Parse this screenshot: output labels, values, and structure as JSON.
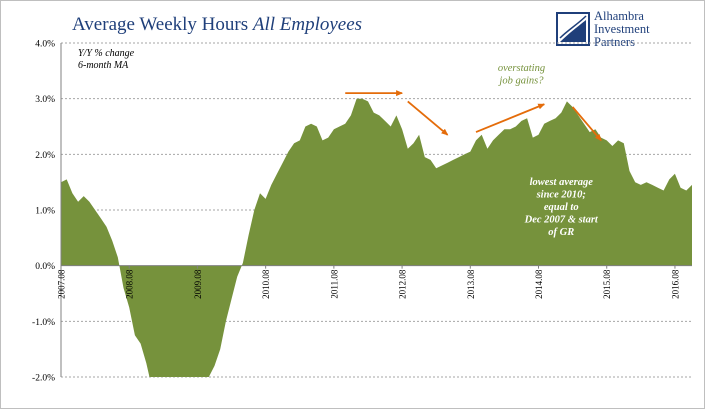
{
  "header": {
    "title_main": "Average Weekly Hours ",
    "title_italic": "All Employees"
  },
  "logo": {
    "icon": "alhambra-logo-icon",
    "lines": [
      "Alhambra",
      "Investment",
      "Partners"
    ]
  },
  "colors": {
    "area_fill": "#76923c",
    "arrow": "#e46c0a",
    "title": "#1f3f7a",
    "annotation_text": "#76923c",
    "note_text": "#ffffff"
  },
  "chart_data": {
    "type": "area",
    "title": "Average Weekly Hours All Employees",
    "subtitle_lines": [
      "Y/Y % change",
      "6-month MA"
    ],
    "xlabel": "",
    "ylabel": "",
    "y_ticks": [
      "4.0%",
      "3.0%",
      "2.0%",
      "1.0%",
      "0.0%",
      "-1.0%",
      "-2.0%"
    ],
    "ylim": [
      -2.0,
      4.0
    ],
    "x_ticks": [
      "2007.08",
      "2008.08",
      "2009.08",
      "2010.08",
      "2011.08",
      "2012.08",
      "2013.08",
      "2014.08",
      "2015.08",
      "2016.08"
    ],
    "xlim": [
      "2007.08",
      "2016.11"
    ],
    "grid": true,
    "series": [
      {
        "x": [
          "2007.08",
          "2007.09",
          "2007.10",
          "2007.11",
          "2007.12",
          "2008.01",
          "2008.02",
          "2008.03",
          "2008.04",
          "2008.05",
          "2008.06",
          "2008.07",
          "2008.08",
          "2008.09",
          "2008.10",
          "2008.11",
          "2008.12",
          "2009.01",
          "2009.02",
          "2009.03",
          "2009.04",
          "2009.05",
          "2009.06",
          "2009.07",
          "2009.08",
          "2009.09",
          "2009.10",
          "2009.11",
          "2009.12",
          "2010.01",
          "2010.02",
          "2010.03",
          "2010.04",
          "2010.05",
          "2010.06",
          "2010.07",
          "2010.08",
          "2010.09",
          "2010.10",
          "2010.11",
          "2010.12",
          "2011.01",
          "2011.02",
          "2011.03",
          "2011.04",
          "2011.05",
          "2011.06",
          "2011.07",
          "2011.08",
          "2011.09",
          "2011.10",
          "2011.11",
          "2011.12",
          "2012.01",
          "2012.02",
          "2012.03",
          "2012.04",
          "2012.05",
          "2012.06",
          "2012.07",
          "2012.08",
          "2012.09",
          "2012.10",
          "2012.11",
          "2012.12",
          "2013.01",
          "2013.02",
          "2013.03",
          "2013.04",
          "2013.05",
          "2013.06",
          "2013.07",
          "2013.08",
          "2013.09",
          "2013.10",
          "2013.11",
          "2013.12",
          "2014.01",
          "2014.02",
          "2014.03",
          "2014.04",
          "2014.05",
          "2014.06",
          "2014.07",
          "2014.08",
          "2014.09",
          "2014.10",
          "2014.11",
          "2014.12",
          "2015.01",
          "2015.02",
          "2015.03",
          "2015.04",
          "2015.05",
          "2015.06",
          "2015.07",
          "2015.08",
          "2015.09",
          "2015.10",
          "2015.11",
          "2015.12",
          "2016.01",
          "2016.02",
          "2016.03",
          "2016.04",
          "2016.05",
          "2016.06",
          "2016.07",
          "2016.08",
          "2016.09",
          "2016.10",
          "2016.11"
        ],
        "values": [
          1.5,
          1.55,
          1.3,
          1.15,
          1.25,
          1.15,
          1.0,
          0.85,
          0.7,
          0.45,
          0.15,
          -0.4,
          -0.75,
          -1.25,
          -1.4,
          -1.75,
          -2.2,
          -2.4,
          -2.5,
          -2.55,
          -2.55,
          -2.5,
          -2.45,
          -2.35,
          -2.2,
          -2.1,
          -2.0,
          -1.8,
          -1.5,
          -1.0,
          -0.6,
          -0.2,
          0.05,
          0.55,
          1.0,
          1.3,
          1.2,
          1.45,
          1.65,
          1.85,
          2.05,
          2.2,
          2.25,
          2.5,
          2.55,
          2.5,
          2.25,
          2.3,
          2.45,
          2.5,
          2.55,
          2.7,
          3.0,
          3.0,
          2.95,
          2.75,
          2.7,
          2.6,
          2.5,
          2.7,
          2.45,
          2.1,
          2.2,
          2.35,
          1.95,
          1.9,
          1.75,
          1.8,
          1.85,
          1.9,
          1.95,
          2.0,
          2.05,
          2.25,
          2.35,
          2.1,
          2.25,
          2.35,
          2.45,
          2.45,
          2.5,
          2.6,
          2.65,
          2.3,
          2.35,
          2.55,
          2.6,
          2.65,
          2.75,
          2.95,
          2.85,
          2.7,
          2.55,
          2.4,
          2.45,
          2.3,
          2.25,
          2.15,
          2.25,
          2.2,
          1.7,
          1.5,
          1.45,
          1.5,
          1.45,
          1.4,
          1.35,
          1.55,
          1.65,
          1.4,
          1.35,
          1.45
        ]
      }
    ],
    "arrows": [
      {
        "from": [
          "2011.10",
          3.1
        ],
        "to": [
          "2012.08",
          3.1
        ]
      },
      {
        "from": [
          "2012.09",
          2.95
        ],
        "to": [
          "2013.04",
          2.35
        ]
      },
      {
        "from": [
          "2013.09",
          2.4
        ],
        "to": [
          "2014.09",
          2.9
        ]
      },
      {
        "from": [
          "2015.02",
          2.85
        ],
        "to": [
          "2015.07",
          2.25
        ]
      }
    ],
    "annotations": [
      {
        "lines": [
          "overstating",
          "job gains?"
        ],
        "anchor_x": "2014.05",
        "anchor_y": 3.5,
        "style": "accent"
      },
      {
        "lines": [
          "lowest average",
          "since 2010;",
          "equal to",
          "Dec 2007 & start",
          "of GR"
        ],
        "anchor_x": "2014.12",
        "anchor_y": 1.45,
        "style": "note"
      }
    ]
  }
}
